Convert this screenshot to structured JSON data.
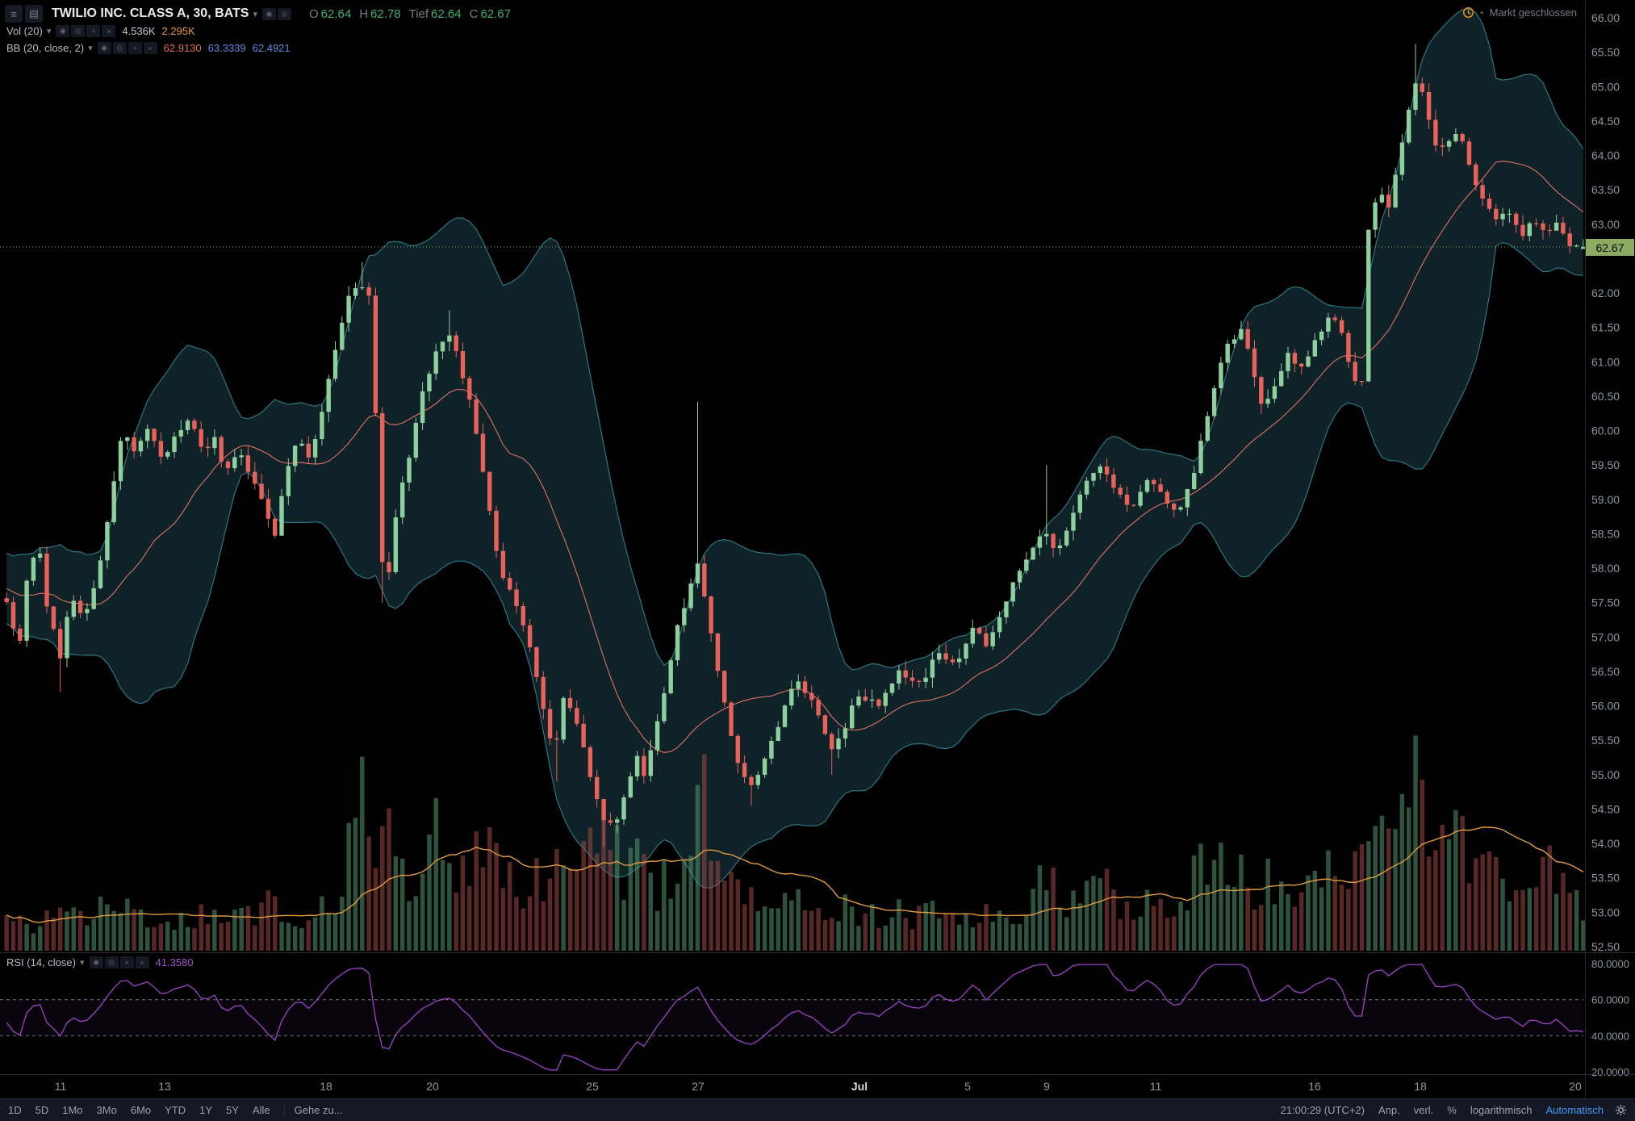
{
  "symbol_header": {
    "title": "TWILIO INC. CLASS A, 30, BATS",
    "ohlc": {
      "o_label": "O",
      "o": "62.64",
      "h_label": "H",
      "h": "62.78",
      "l_label": "Tief",
      "l": "62.64",
      "c_label": "C",
      "c": "62.67"
    }
  },
  "indicators_legend": {
    "volume": {
      "label": "Vol (20)",
      "value": "4.536K",
      "ma": "2.295K"
    },
    "bb": {
      "label": "BB (20, close, 2)",
      "basis": "62.9130",
      "upper": "63.3339",
      "lower": "62.4921"
    },
    "rsi": {
      "label": "RSI (14, close)",
      "value": "41.3580"
    }
  },
  "market_status": {
    "text": "Markt geschlossen"
  },
  "price_axis": {
    "last_price": "62.67"
  },
  "toolbar": {
    "ranges": [
      "1D",
      "5D",
      "1Mo",
      "3Mo",
      "6Mo",
      "YTD",
      "1Y",
      "5Y",
      "Alle"
    ],
    "goto": "Gehe zu...",
    "clock": "21:00:29 (UTC+2)",
    "right": [
      "Anp.",
      "verl.",
      "%",
      "logarithmisch"
    ],
    "auto": "Automatisch"
  },
  "icons": {
    "hamburger": "≡",
    "layout": "▤",
    "caret": "▾",
    "eye": "◉",
    "settings": "◎",
    "add": "+",
    "remove": "×"
  },
  "chart_data": {
    "type": "candlestick",
    "title": "TWILIO INC. CLASS A, 30, BATS",
    "ylim": [
      52.5,
      66.0
    ],
    "y_ticks": [
      "66.00",
      "65.50",
      "65.00",
      "64.50",
      "64.00",
      "63.50",
      "63.00",
      "62.00",
      "61.50",
      "61.00",
      "60.50",
      "60.00",
      "59.50",
      "59.00",
      "58.50",
      "58.00",
      "57.50",
      "57.00",
      "56.50",
      "56.00",
      "55.50",
      "55.00",
      "54.50",
      "54.00",
      "53.50",
      "53.00",
      "52.50"
    ],
    "x_ticks": [
      {
        "f": 0.036,
        "label": "11"
      },
      {
        "f": 0.102,
        "label": "13"
      },
      {
        "f": 0.204,
        "label": "18"
      },
      {
        "f": 0.271,
        "label": "20"
      },
      {
        "f": 0.372,
        "label": "25"
      },
      {
        "f": 0.439,
        "label": "27"
      },
      {
        "f": 0.541,
        "label": "Jul",
        "bold": true
      },
      {
        "f": 0.609,
        "label": "5"
      },
      {
        "f": 0.659,
        "label": "9"
      },
      {
        "f": 0.728,
        "label": "11"
      },
      {
        "f": 0.828,
        "label": "16"
      },
      {
        "f": 0.895,
        "label": "18"
      },
      {
        "f": 0.993,
        "label": "20"
      }
    ],
    "last_close": 62.67,
    "last_candle": {
      "o": 62.64,
      "h": 62.78,
      "l": 62.64,
      "c": 62.67
    },
    "candle_count": 236,
    "price_path": [
      [
        0.0,
        57.5
      ],
      [
        0.008,
        56.8
      ],
      [
        0.013,
        57.9
      ],
      [
        0.02,
        58.4
      ],
      [
        0.026,
        57.4
      ],
      [
        0.034,
        56.7
      ],
      [
        0.041,
        57.6
      ],
      [
        0.049,
        57.2
      ],
      [
        0.058,
        57.9
      ],
      [
        0.066,
        59.0
      ],
      [
        0.074,
        60.0
      ],
      [
        0.082,
        59.7
      ],
      [
        0.091,
        60.1
      ],
      [
        0.099,
        59.5
      ],
      [
        0.107,
        59.9
      ],
      [
        0.115,
        60.2
      ],
      [
        0.124,
        59.7
      ],
      [
        0.132,
        59.9
      ],
      [
        0.139,
        59.4
      ],
      [
        0.148,
        59.7
      ],
      [
        0.157,
        59.2
      ],
      [
        0.164,
        58.9
      ],
      [
        0.17,
        58.5
      ],
      [
        0.176,
        59.3
      ],
      [
        0.184,
        59.9
      ],
      [
        0.192,
        59.6
      ],
      [
        0.199,
        60.2
      ],
      [
        0.205,
        60.8
      ],
      [
        0.212,
        61.5
      ],
      [
        0.218,
        62.0
      ],
      [
        0.224,
        62.2
      ],
      [
        0.232,
        61.8
      ],
      [
        0.237,
        58.1
      ],
      [
        0.242,
        57.9
      ],
      [
        0.249,
        59.1
      ],
      [
        0.257,
        59.8
      ],
      [
        0.264,
        60.6
      ],
      [
        0.272,
        61.1
      ],
      [
        0.28,
        61.5
      ],
      [
        0.288,
        60.9
      ],
      [
        0.295,
        60.3
      ],
      [
        0.301,
        59.6
      ],
      [
        0.307,
        58.8
      ],
      [
        0.312,
        58.1
      ],
      [
        0.32,
        57.6
      ],
      [
        0.328,
        57.2
      ],
      [
        0.334,
        56.7
      ],
      [
        0.341,
        55.9
      ],
      [
        0.347,
        55.3
      ],
      [
        0.354,
        56.2
      ],
      [
        0.361,
        55.8
      ],
      [
        0.367,
        55.3
      ],
      [
        0.374,
        54.7
      ],
      [
        0.38,
        54.2
      ],
      [
        0.387,
        54.3
      ],
      [
        0.393,
        54.8
      ],
      [
        0.4,
        55.3
      ],
      [
        0.405,
        54.9
      ],
      [
        0.412,
        55.7
      ],
      [
        0.418,
        56.3
      ],
      [
        0.425,
        57.1
      ],
      [
        0.432,
        57.6
      ],
      [
        0.438,
        58.1
      ],
      [
        0.445,
        57.3
      ],
      [
        0.451,
        56.5
      ],
      [
        0.458,
        55.7
      ],
      [
        0.464,
        55.1
      ],
      [
        0.471,
        54.9
      ],
      [
        0.474,
        54.8
      ],
      [
        0.487,
        55.6
      ],
      [
        0.5,
        56.4
      ],
      [
        0.512,
        56.1
      ],
      [
        0.523,
        55.3
      ],
      [
        0.53,
        55.6
      ],
      [
        0.539,
        56.2
      ],
      [
        0.553,
        56.0
      ],
      [
        0.566,
        56.5
      ],
      [
        0.579,
        56.3
      ],
      [
        0.592,
        56.8
      ],
      [
        0.602,
        56.6
      ],
      [
        0.612,
        57.1
      ],
      [
        0.622,
        56.9
      ],
      [
        0.632,
        57.4
      ],
      [
        0.641,
        57.9
      ],
      [
        0.651,
        58.3
      ],
      [
        0.658,
        58.6
      ],
      [
        0.666,
        58.2
      ],
      [
        0.674,
        58.7
      ],
      [
        0.684,
        59.2
      ],
      [
        0.694,
        59.5
      ],
      [
        0.704,
        59.1
      ],
      [
        0.714,
        58.9
      ],
      [
        0.724,
        59.3
      ],
      [
        0.734,
        59.0
      ],
      [
        0.743,
        58.8
      ],
      [
        0.753,
        59.4
      ],
      [
        0.763,
        60.4
      ],
      [
        0.773,
        61.2
      ],
      [
        0.783,
        61.5
      ],
      [
        0.789,
        61.0
      ],
      [
        0.797,
        60.3
      ],
      [
        0.804,
        60.6
      ],
      [
        0.813,
        61.1
      ],
      [
        0.822,
        60.9
      ],
      [
        0.83,
        61.3
      ],
      [
        0.839,
        61.7
      ],
      [
        0.847,
        61.4
      ],
      [
        0.854,
        60.8
      ],
      [
        0.859,
        60.4
      ],
      [
        0.863,
        62.8
      ],
      [
        0.87,
        63.5
      ],
      [
        0.876,
        63.2
      ],
      [
        0.882,
        63.9
      ],
      [
        0.888,
        64.5
      ],
      [
        0.895,
        65.2
      ],
      [
        0.901,
        64.6
      ],
      [
        0.908,
        64.0
      ],
      [
        0.914,
        64.2
      ],
      [
        0.921,
        64.4
      ],
      [
        0.929,
        63.8
      ],
      [
        0.937,
        63.3
      ],
      [
        0.945,
        63.0
      ],
      [
        0.953,
        63.2
      ],
      [
        0.961,
        62.8
      ],
      [
        0.968,
        63.1
      ],
      [
        0.976,
        62.8
      ],
      [
        0.984,
        63.0
      ],
      [
        0.992,
        62.7
      ],
      [
        1.0,
        62.67
      ]
    ],
    "wick_events": [
      {
        "f": 0.034,
        "low": 56.2
      },
      {
        "f": 0.224,
        "high": 62.45
      },
      {
        "f": 0.237,
        "low": 57.5
      },
      {
        "f": 0.28,
        "high": 61.75
      },
      {
        "f": 0.347,
        "low": 54.9
      },
      {
        "f": 0.38,
        "low": 53.95
      },
      {
        "f": 0.438,
        "high": 60.42
      },
      {
        "f": 0.471,
        "low": 54.55
      },
      {
        "f": 0.523,
        "low": 55.0
      },
      {
        "f": 0.658,
        "high": 59.5
      },
      {
        "f": 0.895,
        "high": 65.62
      }
    ],
    "volume_profile": [
      [
        0,
        0.12
      ],
      [
        0.02,
        0.1
      ],
      [
        0.034,
        0.22
      ],
      [
        0.05,
        0.12
      ],
      [
        0.066,
        0.25
      ],
      [
        0.08,
        0.14
      ],
      [
        0.1,
        0.12
      ],
      [
        0.12,
        0.16
      ],
      [
        0.14,
        0.12
      ],
      [
        0.165,
        0.2
      ],
      [
        0.18,
        0.12
      ],
      [
        0.2,
        0.18
      ],
      [
        0.215,
        0.3
      ],
      [
        0.224,
        0.95
      ],
      [
        0.232,
        0.45
      ],
      [
        0.238,
        0.75
      ],
      [
        0.25,
        0.35
      ],
      [
        0.262,
        0.3
      ],
      [
        0.272,
        0.5
      ],
      [
        0.283,
        0.3
      ],
      [
        0.3,
        0.42
      ],
      [
        0.308,
        0.55
      ],
      [
        0.32,
        0.3
      ],
      [
        0.33,
        0.25
      ],
      [
        0.34,
        0.35
      ],
      [
        0.347,
        0.42
      ],
      [
        0.36,
        0.28
      ],
      [
        0.374,
        0.45
      ],
      [
        0.381,
        0.6
      ],
      [
        0.39,
        0.32
      ],
      [
        0.4,
        0.45
      ],
      [
        0.41,
        0.26
      ],
      [
        0.42,
        0.3
      ],
      [
        0.432,
        0.36
      ],
      [
        0.439,
        0.78
      ],
      [
        0.447,
        0.4
      ],
      [
        0.455,
        0.28
      ],
      [
        0.465,
        0.35
      ],
      [
        0.475,
        0.22
      ],
      [
        0.49,
        0.18
      ],
      [
        0.5,
        0.22
      ],
      [
        0.515,
        0.16
      ],
      [
        0.53,
        0.2
      ],
      [
        0.545,
        0.14
      ],
      [
        0.56,
        0.18
      ],
      [
        0.575,
        0.14
      ],
      [
        0.59,
        0.18
      ],
      [
        0.605,
        0.14
      ],
      [
        0.62,
        0.18
      ],
      [
        0.635,
        0.15
      ],
      [
        0.648,
        0.22
      ],
      [
        0.658,
        0.4
      ],
      [
        0.67,
        0.22
      ],
      [
        0.684,
        0.28
      ],
      [
        0.694,
        0.35
      ],
      [
        0.705,
        0.22
      ],
      [
        0.715,
        0.18
      ],
      [
        0.725,
        0.26
      ],
      [
        0.735,
        0.18
      ],
      [
        0.744,
        0.22
      ],
      [
        0.754,
        0.34
      ],
      [
        0.764,
        0.46
      ],
      [
        0.774,
        0.3
      ],
      [
        0.784,
        0.36
      ],
      [
        0.791,
        0.25
      ],
      [
        0.798,
        0.3
      ],
      [
        0.81,
        0.22
      ],
      [
        0.82,
        0.26
      ],
      [
        0.83,
        0.3
      ],
      [
        0.84,
        0.32
      ],
      [
        0.85,
        0.26
      ],
      [
        0.859,
        0.42
      ],
      [
        0.864,
        0.7
      ],
      [
        0.871,
        0.46
      ],
      [
        0.882,
        0.55
      ],
      [
        0.889,
        1.0
      ],
      [
        0.896,
        0.72
      ],
      [
        0.903,
        0.5
      ],
      [
        0.912,
        0.4
      ],
      [
        0.921,
        0.46
      ],
      [
        0.93,
        0.35
      ],
      [
        0.94,
        0.42
      ],
      [
        0.95,
        0.3
      ],
      [
        0.96,
        0.36
      ],
      [
        0.97,
        0.28
      ],
      [
        0.98,
        0.36
      ],
      [
        0.99,
        0.26
      ],
      [
        1,
        0.2
      ]
    ],
    "indicators": {
      "bollinger": {
        "window": 20,
        "mult": 2
      },
      "volume_ma": 20,
      "rsi": {
        "window": 14,
        "range": [
          20,
          80
        ],
        "levels": [
          60,
          40
        ],
        "ticks": [
          "80.0000",
          "60.0000",
          "40.0000",
          "20.0000"
        ]
      }
    },
    "colors": {
      "up": "#8ecf9e",
      "down": "#e8625c",
      "band_edge": "#2e7583",
      "band_fill": "rgba(40,90,104,0.38)",
      "basis": "#cf6b62",
      "vol_up": "rgba(84,150,108,0.55)",
      "vol_down": "rgba(158,72,70,0.55)",
      "vol_ma": "#e09b3d",
      "rsi": "#9d43c9",
      "rsi_level": "#70747f",
      "rsi_fill": "rgba(157,67,201,0.06)",
      "price_line": "#6fae58",
      "badge_bg": "#8cab60",
      "badge_text": "#07090d",
      "axis_text": "#9095a0",
      "month_text": "#d6d9de",
      "ohlc_green": "#3db26f",
      "accent_blue": "#3b9bf5"
    }
  }
}
